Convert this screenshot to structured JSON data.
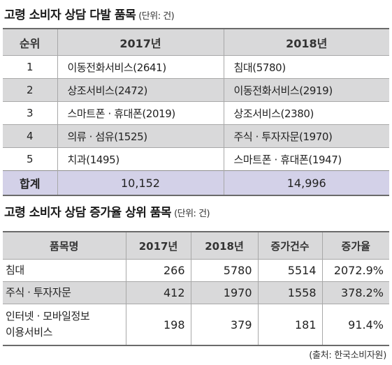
{
  "table1": {
    "title": "고령 소비자 상담 다발 품목",
    "unit": "(단위: 건)",
    "headers": [
      "순위",
      "2017년",
      "2018년"
    ],
    "rows": [
      {
        "rank": "1",
        "y2017": "이동전화서비스(2641)",
        "y2018": "침대(5780)"
      },
      {
        "rank": "2",
        "y2017": "상조서비스(2472)",
        "y2018": "이동전화서비스(2919)"
      },
      {
        "rank": "3",
        "y2017": "스마트폰 · 휴대폰(2019)",
        "y2018": "상조서비스(2380)"
      },
      {
        "rank": "4",
        "y2017": "의류 · 섬유(1525)",
        "y2018": "주식 · 투자자문(1970)"
      },
      {
        "rank": "5",
        "y2017": "치과(1495)",
        "y2018": "스마트폰 · 휴대폰(1947)"
      }
    ],
    "total": {
      "label": "합계",
      "y2017": "10,152",
      "y2018": "14,996"
    }
  },
  "table2": {
    "title": "고령 소비자 상담 증가율 상위 품목",
    "unit": "(단위: 건)",
    "headers": [
      "품목명",
      "2017년",
      "2018년",
      "증가건수",
      "증가율"
    ],
    "rows": [
      {
        "name": "침대",
        "y2017": "266",
        "y2018": "5780",
        "increase": "5514",
        "rate": "2072.9%"
      },
      {
        "name": "주식 · 투자자문",
        "y2017": "412",
        "y2018": "1970",
        "increase": "1558",
        "rate": "378.2%"
      },
      {
        "name_line1": "인터넷 · 모바일정보",
        "name_line2": "이용서비스",
        "y2017": "198",
        "y2018": "379",
        "increase": "181",
        "rate": "91.4%"
      }
    ]
  },
  "source": "(출처: 한국소비자원)"
}
